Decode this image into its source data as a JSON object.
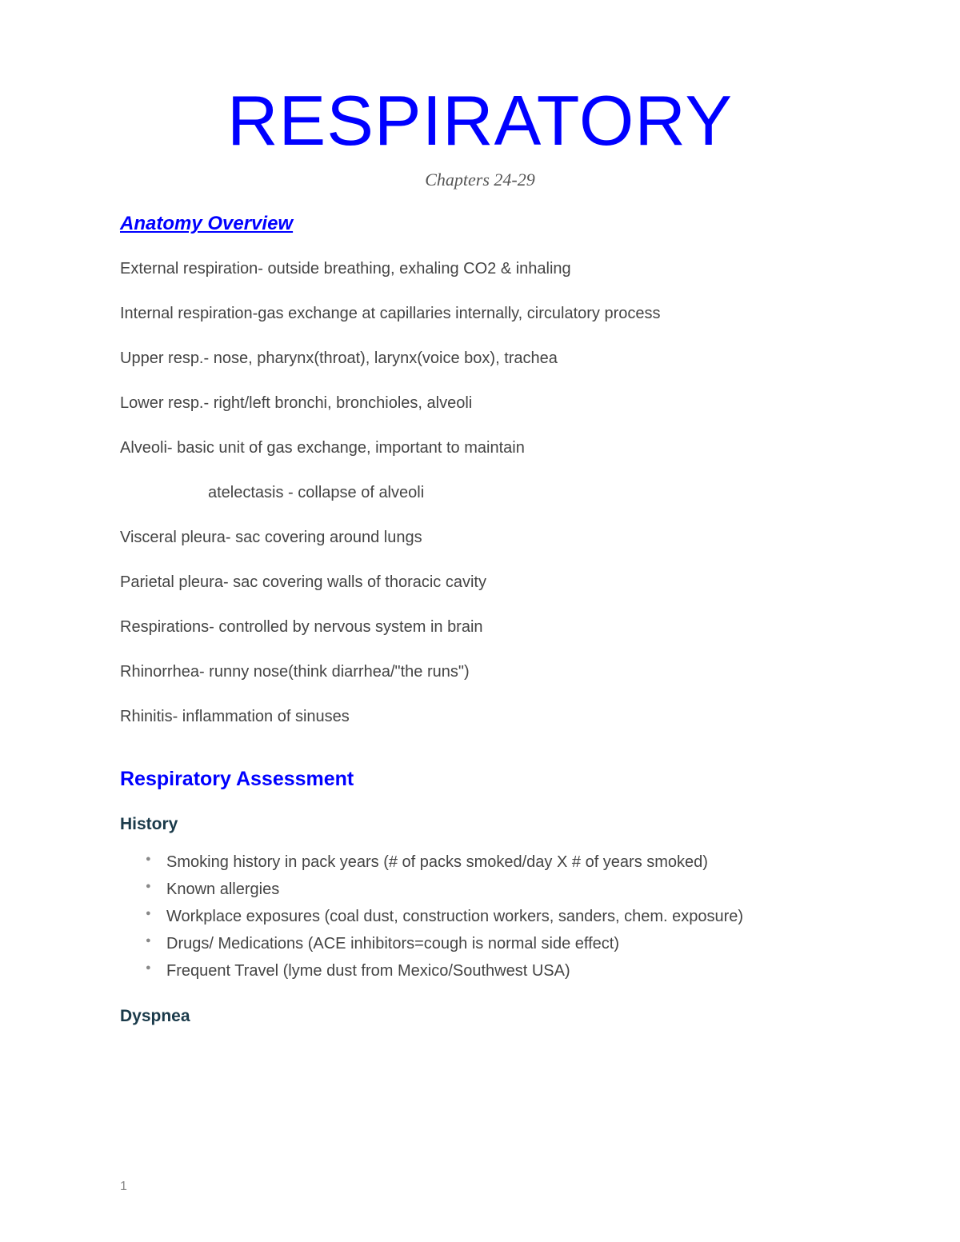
{
  "title": "RESPIRATORY",
  "subtitle": "Chapters 24-29",
  "section1": {
    "heading": "Anatomy Overview",
    "lines": [
      "External respiration- outside breathing, exhaling CO2 & inhaling",
      "Internal respiration-gas exchange at capillaries internally, circulatory process",
      "Upper resp.- nose, pharynx(throat), larynx(voice box), trachea",
      "Lower resp.- right/left bronchi, bronchioles, alveoli",
      "Alveoli- basic unit of gas exchange, important to maintain"
    ],
    "indent_line": "atelectasis - collapse of alveoli",
    "lines2": [
      "Visceral pleura- sac covering around lungs",
      "Parietal pleura- sac covering walls of thoracic cavity",
      "Respirations- controlled by nervous system in brain",
      "Rhinorrhea- runny nose(think diarrhea/\"the runs\")",
      "Rhinitis- inflammation of sinuses"
    ]
  },
  "section2": {
    "heading": "Respiratory Assessment",
    "sub1": {
      "heading": "History",
      "bullets": [
        "Smoking history in pack years (# of packs smoked/day X  # of years smoked)",
        "Known allergies",
        "Workplace exposures (coal dust, construction workers, sanders, chem. exposure)",
        "Drugs/ Medications (ACE inhibitors=cough is normal side effect)",
        "Frequent Travel (lyme dust from Mexico/Southwest USA)"
      ]
    },
    "sub2": {
      "heading": "Dyspnea"
    }
  },
  "page_number": "1",
  "colors": {
    "title_color": "#0000ff",
    "body_text_color": "#444444",
    "sub_heading_color": "#1a3a4a",
    "subtitle_color": "#555555",
    "bullet_color": "#888888",
    "background": "#ffffff"
  },
  "typography": {
    "title_fontsize": 88,
    "subtitle_fontsize": 22,
    "section_heading_fontsize": 24,
    "body_fontsize": 20,
    "sub_heading_fontsize": 21
  }
}
